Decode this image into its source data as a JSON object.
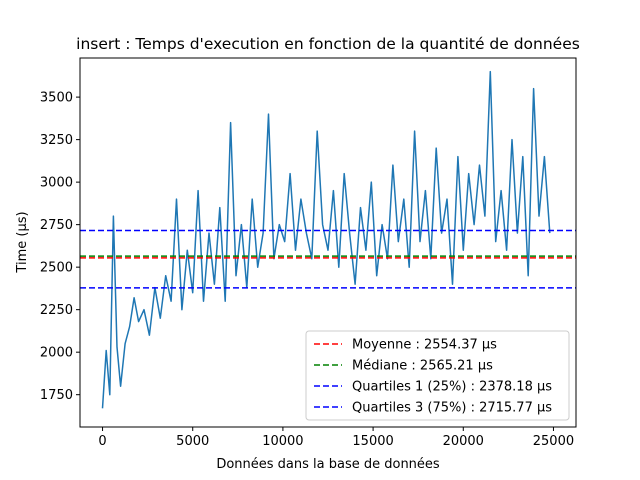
{
  "chart_data": {
    "type": "line",
    "title": "insert : Temps d'execution en fonction de la quantité de données",
    "xlabel": "Données dans la base de données",
    "ylabel": "Time (µs)",
    "xlim": [
      -1250,
      26250
    ],
    "ylim": [
      1560,
      3730
    ],
    "x_ticks": [
      0,
      5000,
      10000,
      15000,
      20000,
      25000
    ],
    "y_ticks": [
      1750,
      2000,
      2250,
      2500,
      2750,
      3000,
      3250,
      3500
    ],
    "grid": false,
    "legend_position": "lower right",
    "series": [
      {
        "type": "line",
        "color": "#1f77b4",
        "x": [
          0,
          200,
          400,
          600,
          800,
          1000,
          1250,
          1500,
          1750,
          2000,
          2300,
          2600,
          2900,
          3200,
          3500,
          3800,
          4100,
          4400,
          4700,
          5000,
          5300,
          5600,
          5900,
          6200,
          6500,
          6800,
          7100,
          7400,
          7700,
          8000,
          8300,
          8600,
          8900,
          9200,
          9500,
          9800,
          10100,
          10400,
          10700,
          11000,
          11300,
          11600,
          11900,
          12200,
          12500,
          12800,
          13100,
          13400,
          13700,
          14000,
          14300,
          14600,
          14900,
          15200,
          15500,
          15800,
          16100,
          16400,
          16700,
          17000,
          17300,
          17600,
          17900,
          18200,
          18500,
          18800,
          19100,
          19400,
          19700,
          20000,
          20300,
          20600,
          20900,
          21200,
          21500,
          21800,
          22100,
          22400,
          22700,
          23000,
          23300,
          23600,
          23900,
          24200,
          24500,
          24800
        ],
        "y": [
          1670,
          2010,
          1750,
          2800,
          2030,
          1800,
          2050,
          2150,
          2320,
          2180,
          2250,
          2100,
          2380,
          2200,
          2450,
          2300,
          2900,
          2250,
          2600,
          2350,
          2950,
          2300,
          2700,
          2400,
          2850,
          2300,
          3350,
          2450,
          2750,
          2380,
          2900,
          2500,
          2700,
          3400,
          2550,
          2750,
          2650,
          3050,
          2600,
          2900,
          2700,
          2550,
          3300,
          2750,
          2600,
          2950,
          2500,
          3050,
          2700,
          2400,
          2850,
          2600,
          3000,
          2450,
          2750,
          2550,
          3100,
          2650,
          2900,
          2500,
          3300,
          2650,
          2950,
          2550,
          3200,
          2700,
          2900,
          2400,
          3150,
          2600,
          3050,
          2750,
          3100,
          2800,
          3650,
          2650,
          2950,
          2600,
          3250,
          2700,
          3150,
          2450,
          3550,
          2800,
          3150,
          2700
        ]
      }
    ],
    "reference_lines": [
      {
        "label": "Moyenne : 2554.37 µs",
        "value": 2554.37,
        "color": "#ff0000"
      },
      {
        "label": "Médiane : 2565.21 µs",
        "value": 2565.21,
        "color": "#008000"
      },
      {
        "label": "Quartiles 1 (25%) : 2378.18 µs",
        "value": 2378.18,
        "color": "#0000ff"
      },
      {
        "label": "Quartiles 3 (75%) : 2715.77 µs",
        "value": 2715.77,
        "color": "#0000ff"
      }
    ]
  }
}
